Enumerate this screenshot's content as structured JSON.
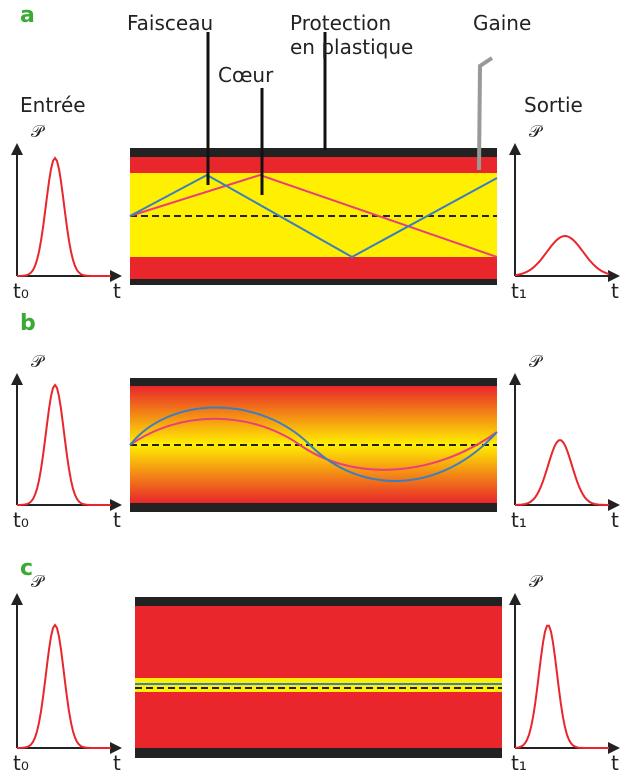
{
  "callouts": {
    "faisceau": "Faisceau",
    "protection": [
      "Protection",
      "en plastique"
    ],
    "gaine": "Gaine",
    "coeur": "Cœur",
    "input": "Entrée",
    "output": "Sortie"
  },
  "panels": [
    {
      "label": "a",
      "left": {
        "y_label": "𝒫",
        "t_start": "t₀",
        "t_axis": "t"
      },
      "right": {
        "y_label": "𝒫",
        "t_start": "t₁",
        "t_axis": "t"
      }
    },
    {
      "label": "b",
      "left": {
        "y_label": "𝒫",
        "t_start": "t₀",
        "t_axis": "t"
      },
      "right": {
        "y_label": "𝒫",
        "t_start": "t₁",
        "t_axis": "t"
      }
    },
    {
      "label": "c",
      "left": {
        "y_label": "𝒫",
        "t_start": "t₀",
        "t_axis": "t"
      },
      "right": {
        "y_label": "𝒫",
        "t_start": "t₁",
        "t_axis": "t"
      }
    }
  ]
}
